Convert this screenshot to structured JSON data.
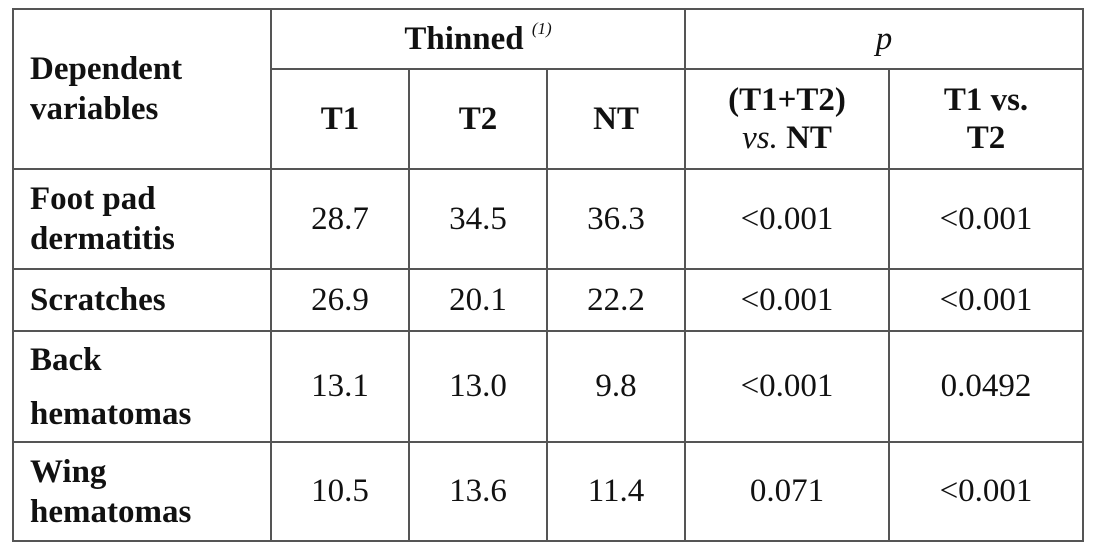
{
  "table": {
    "row_header_label": "Dependent variables",
    "group_thinned": {
      "label": "Thinned",
      "note": "(1)"
    },
    "group_p": {
      "label": "p"
    },
    "columns": [
      "T1",
      "T2",
      "NT"
    ],
    "p_columns": [
      {
        "line1": "(T1+T2)",
        "vs": "vs.",
        "line2": "NT"
      },
      {
        "line1": "T1 vs.",
        "line2": "T2"
      }
    ],
    "rows": [
      {
        "label": "Foot pad dermatitis",
        "values": [
          "28.7",
          "34.5",
          "36.3",
          "<0.001",
          "<0.001"
        ]
      },
      {
        "label": "Scratches",
        "values": [
          "26.9",
          "20.1",
          "22.2",
          "<0.001",
          "<0.001"
        ]
      },
      {
        "label": "Back hematomas",
        "values": [
          "13.1",
          "13.0",
          "9.8",
          "<0.001",
          "0.0492"
        ]
      },
      {
        "label": "Wing hematomas",
        "values": [
          "10.5",
          "13.6",
          "11.4",
          "0.071",
          "<0.001"
        ]
      }
    ]
  }
}
